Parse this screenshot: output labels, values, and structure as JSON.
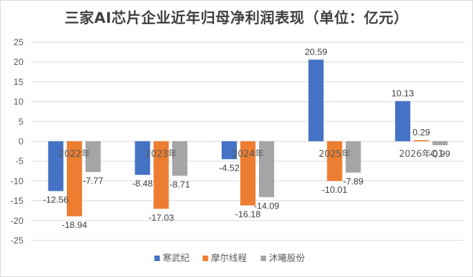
{
  "chart_data": {
    "type": "bar",
    "title": "三家AI芯片企业近年归母净利润表现（单位：亿元）",
    "categories": [
      "2022年",
      "2023年",
      "2024年",
      "2025年",
      "2026年Q1"
    ],
    "series": [
      {
        "name": "寒武纪",
        "color": "#4472C4",
        "values": [
          -12.56,
          -8.48,
          -4.52,
          20.59,
          10.13
        ]
      },
      {
        "name": "摩尔线程",
        "color": "#ED7D31",
        "values": [
          -18.94,
          -17.03,
          -16.18,
          -10.01,
          0.29
        ]
      },
      {
        "name": "沐曦股份",
        "color": "#A5A5A5",
        "values": [
          -7.77,
          -8.71,
          -14.09,
          -7.89,
          -0.99
        ]
      }
    ],
    "ylim": [
      -25,
      25
    ],
    "yticks": [
      25,
      20,
      15,
      10,
      5,
      0,
      -5,
      -10,
      -15,
      -20,
      -25
    ],
    "grid": true,
    "legend_position": "bottom",
    "data_labels": true
  }
}
